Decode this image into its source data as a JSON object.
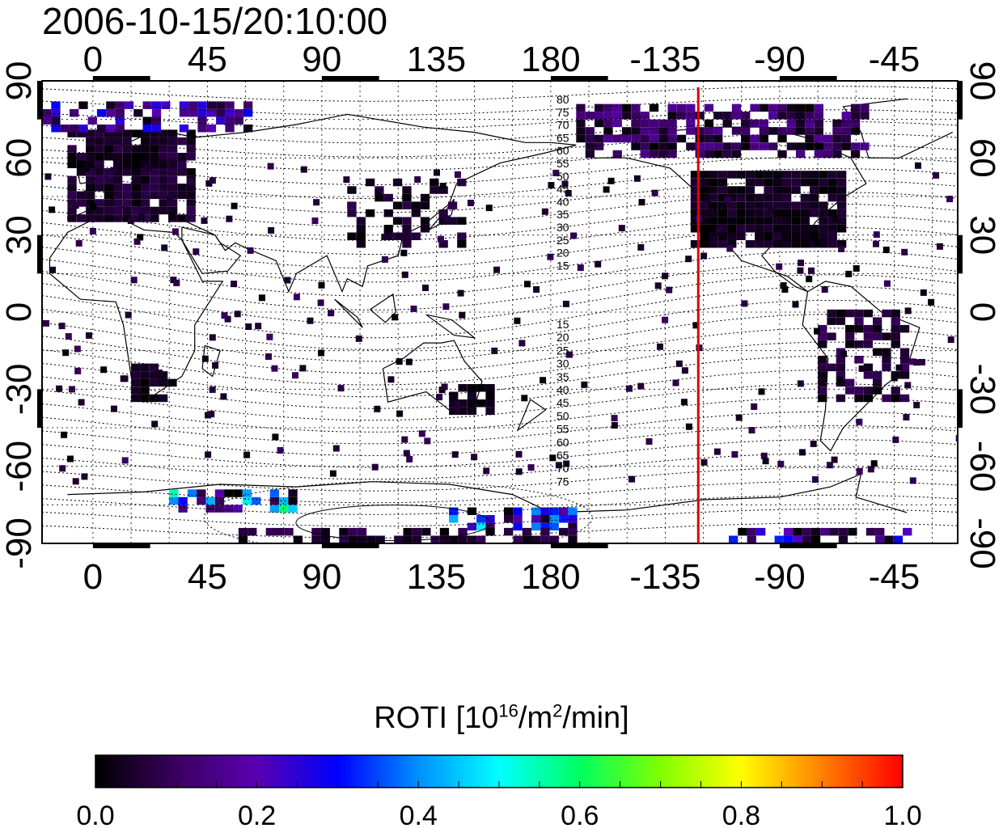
{
  "title": "2006-10-15/20:10:00",
  "map": {
    "lon_ticks_top": [
      "0",
      "45",
      "90",
      "135",
      "180",
      "-135",
      "-90",
      "-45"
    ],
    "lon_ticks_bottom": [
      "0",
      "45",
      "90",
      "135",
      "180",
      "-135",
      "-90",
      "-45"
    ],
    "lat_ticks_left": [
      "90",
      "60",
      "30",
      "0",
      "-30",
      "-60",
      "-90"
    ],
    "lat_ticks_right": [
      "90",
      "60",
      "30",
      "0",
      "-30",
      "-60",
      "-90"
    ],
    "lon_tick_values": [
      0,
      45,
      90,
      135,
      180,
      225,
      270,
      315
    ],
    "lat_tick_values": [
      90,
      60,
      30,
      0,
      -30,
      -60,
      -90
    ],
    "lon_range_deg": [
      -20,
      340
    ],
    "lat_range_deg": [
      -90,
      90
    ],
    "grid": true,
    "marker_meridian_lon_deg": -122,
    "marker_color": "#e00000",
    "contour_labels_north": [
      "80",
      "75",
      "70",
      "65",
      "60",
      "55",
      "50",
      "45",
      "40",
      "35",
      "30",
      "25",
      "20",
      "15"
    ],
    "contour_labels_south": [
      "15",
      "20",
      "25",
      "30",
      "35",
      "40",
      "45",
      "50",
      "55",
      "60",
      "65",
      "70",
      "75"
    ]
  },
  "colorbar": {
    "label_prefix": "ROTI  [10",
    "label_sup1": "16",
    "label_mid": "/m",
    "label_sup2": "2",
    "label_suffix": "/min]",
    "ticks": [
      "0.0",
      "0.2",
      "0.4",
      "0.6",
      "0.8",
      "1.0"
    ],
    "tick_values": [
      0.0,
      0.2,
      0.4,
      0.6,
      0.8,
      1.0
    ],
    "range": [
      0.0,
      1.0
    ],
    "colors": [
      "#000000",
      "#3a0060",
      "#5a00b0",
      "#0000ff",
      "#0090ff",
      "#00ffff",
      "#00ff60",
      "#80ff00",
      "#ffff00",
      "#ff8000",
      "#ff0000"
    ]
  }
}
